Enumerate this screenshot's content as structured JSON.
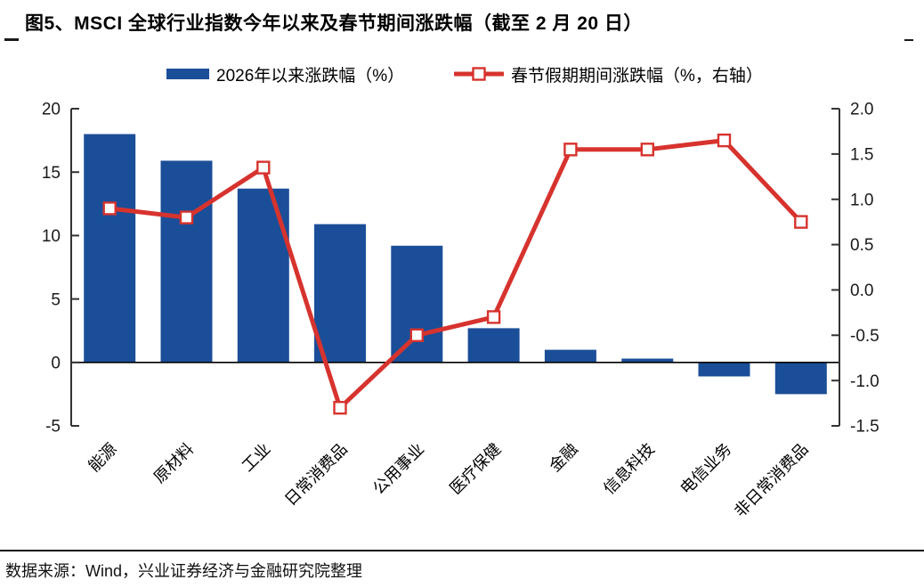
{
  "page": {
    "title": "图5、MSCI 全球行业指数今年以来及春节期间涨跌幅（截至 2 月 20 日）",
    "footer": "数据来源：Wind，兴业证券经济与金融研究院整理"
  },
  "legend": {
    "bar_label": "2026年以来涨跌幅（%）",
    "line_label": "春节假期期间涨跌幅（%，右轴）"
  },
  "colors": {
    "bar": "#1B4E98",
    "line": "#D7332E",
    "axis": "#333333",
    "tick_text": "#1a1a1a",
    "category_text": "#000000",
    "zero_line": "#000000",
    "marker_fill": "#ffffff"
  },
  "chart_data": {
    "type": "bar",
    "subtype": "bar-and-line-dual-axis",
    "title": "MSCI 全球行业指数今年以来及春节期间涨跌幅（截至 2 月 20 日）",
    "categories": [
      "能源",
      "原材料",
      "工业",
      "日常消费品",
      "公用事业",
      "医疗保健",
      "金融",
      "信息科技",
      "电信业务",
      "非日常消费品"
    ],
    "series": [
      {
        "name": "2026年以来涨跌幅（%）",
        "type": "bar",
        "axis": "left",
        "values": [
          18.0,
          15.9,
          13.7,
          10.9,
          9.2,
          2.7,
          1.0,
          0.3,
          -1.1,
          -2.5
        ]
      },
      {
        "name": "春节假期期间涨跌幅（%，右轴）",
        "type": "line",
        "axis": "right",
        "values": [
          0.9,
          0.8,
          1.35,
          -1.3,
          -0.5,
          -0.3,
          1.55,
          1.55,
          1.65,
          0.75
        ]
      }
    ],
    "left_axis": {
      "min": -5,
      "max": 20,
      "tick_labels": [
        "20",
        "15",
        "10",
        "5",
        "0",
        "-5"
      ],
      "tick_values": [
        20,
        15,
        10,
        5,
        0,
        -5
      ]
    },
    "right_axis": {
      "min": -1.5,
      "max": 2.0,
      "tick_labels": [
        "2.0",
        "1.5",
        "1.0",
        "0.5",
        "0.0",
        "-0.5",
        "-1.0",
        "-1.5"
      ],
      "tick_values": [
        2.0,
        1.5,
        1.0,
        0.5,
        0.0,
        -0.5,
        -1.0,
        -1.5
      ]
    },
    "grid": false,
    "legend_position": "top",
    "xlabel": "",
    "ylabel": ""
  }
}
